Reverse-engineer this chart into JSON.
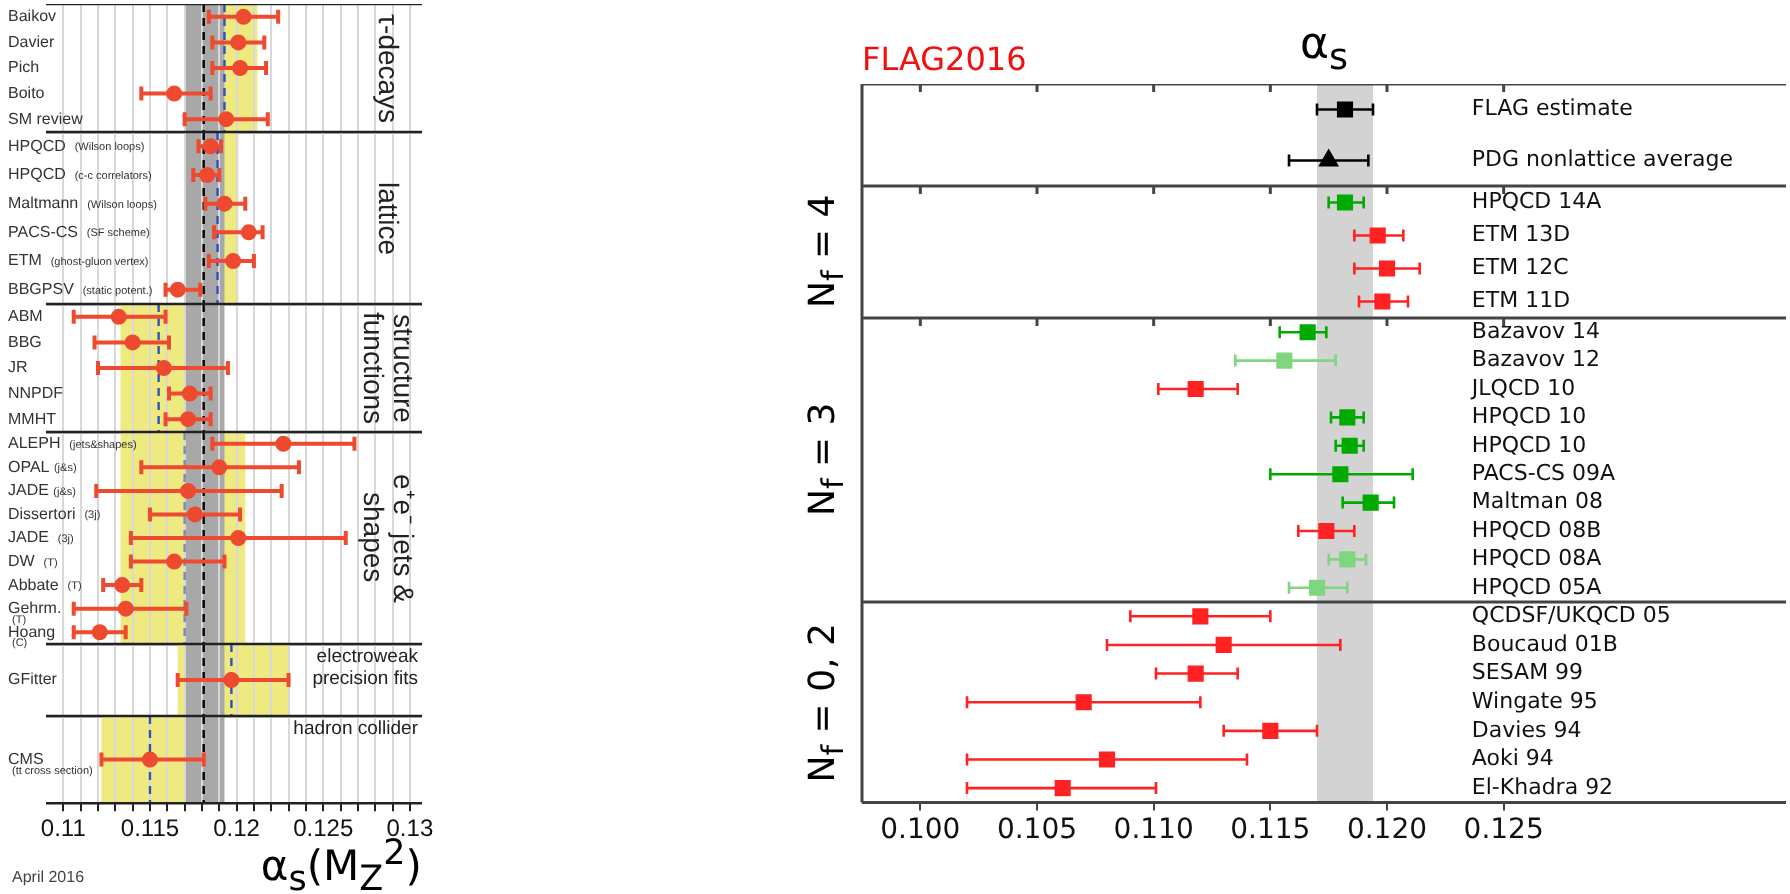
{
  "chart_data": [
    {
      "type": "scatter",
      "orientation": "horizontal",
      "y2label": "τ-decays",
      "categories": [
        "Baikov",
        "Davier",
        "Pich",
        "Boito",
        "SM review"
      ],
      "series": [
        {
          "color": "#ee4a30",
          "marker": "circle",
          "values": [
            0.1204,
            0.1201,
            0.1202,
            0.1164,
            0.1194
          ],
          "errors": [
            [
              0.1184,
              0.1224
            ],
            [
              0.1186,
              0.1216
            ],
            [
              0.1186,
              0.1217
            ],
            [
              0.1145,
              0.1185
            ],
            [
              0.117,
              0.1218
            ]
          ]
        }
      ],
      "xlim": [
        0.109,
        0.1307
      ],
      "xticks": [
        0.11,
        {
          "value": 0.111,
          "label": null
        },
        {
          "value": 0.112,
          "label": null
        },
        {
          "value": 0.113,
          "label": null
        },
        {
          "value": 0.114,
          "label": null
        },
        0.115,
        {
          "value": 0.116,
          "label": null
        },
        {
          "value": 0.117,
          "label": null
        },
        {
          "value": 0.118,
          "label": null
        },
        {
          "value": 0.119,
          "label": null
        },
        0.12,
        {
          "value": 0.121,
          "label": null
        },
        {
          "value": 0.122,
          "label": null
        },
        {
          "value": 0.123,
          "label": null
        },
        {
          "value": 0.124,
          "label": null
        },
        0.125,
        {
          "value": 0.126,
          "label": null
        },
        {
          "value": 0.127,
          "label": null
        },
        {
          "value": 0.128,
          "label": null
        },
        {
          "value": 0.129,
          "label": null
        },
        0.13
      ],
      "tick_labels": "y",
      "grid": "x",
      "bands": [
        {
          "axis": "x",
          "from": 0.1174,
          "to": 0.1212,
          "color": "#eeea80"
        },
        {
          "axis": "x",
          "from": 0.117,
          "to": 0.1193,
          "color": "#a8a8a8"
        }
      ],
      "ref_lines": [
        {
          "axis": "x",
          "value": 0.1181,
          "color": "#000000",
          "line_style": "dashed"
        },
        {
          "axis": "x",
          "value": 0.1193,
          "color": "#3050c0",
          "line_style": "dashed"
        }
      ]
    },
    {
      "type": "scatter",
      "orientation": "horizontal",
      "y2label": "lattice",
      "categories": [
        "HPQCD (Wilson loops)",
        "HPQCD (c-c correlators)",
        "Maltmann (Wilson loops)",
        "PACS-CS (SF scheme)",
        "ETM (ghost-gluon vertex)",
        "BBGPSV (static potent.)"
      ],
      "series": [
        {
          "color": "#ee4a30",
          "marker": "circle",
          "values": [
            0.1185,
            0.1183,
            0.1193,
            0.1207,
            0.1198,
            0.1166
          ],
          "errors": [
            [
              0.1178,
              0.1191
            ],
            [
              0.1175,
              0.119
            ],
            [
              0.1182,
              0.1205
            ],
            [
              0.1187,
              0.1215
            ],
            [
              0.1184,
              0.121
            ],
            [
              0.1159,
              0.1179
            ]
          ]
        }
      ],
      "xlim": [
        0.109,
        0.1307
      ],
      "xticks": [
        0.11,
        {
          "value": 0.111,
          "label": null
        },
        {
          "value": 0.112,
          "label": null
        },
        {
          "value": 0.113,
          "label": null
        },
        {
          "value": 0.114,
          "label": null
        },
        0.115,
        {
          "value": 0.116,
          "label": null
        },
        {
          "value": 0.117,
          "label": null
        },
        {
          "value": 0.118,
          "label": null
        },
        {
          "value": 0.119,
          "label": null
        },
        0.12,
        {
          "value": 0.121,
          "label": null
        },
        {
          "value": 0.122,
          "label": null
        },
        {
          "value": 0.123,
          "label": null
        },
        {
          "value": 0.124,
          "label": null
        },
        0.125,
        {
          "value": 0.126,
          "label": null
        },
        {
          "value": 0.127,
          "label": null
        },
        {
          "value": 0.128,
          "label": null
        },
        {
          "value": 0.129,
          "label": null
        },
        0.13
      ],
      "tick_labels": "y",
      "grid": "x",
      "bands": [
        {
          "axis": "x",
          "from": 0.1177,
          "to": 0.1201,
          "color": "#eeea80"
        },
        {
          "axis": "x",
          "from": 0.117,
          "to": 0.1193,
          "color": "#a8a8a8"
        }
      ],
      "ref_lines": [
        {
          "axis": "x",
          "value": 0.1181,
          "color": "#000000",
          "line_style": "dashed"
        },
        {
          "axis": "x",
          "value": 0.1189,
          "color": "#3050c0",
          "line_style": "dashed"
        }
      ]
    },
    {
      "type": "scatter",
      "orientation": "horizontal",
      "y2label": "structure functions",
      "categories": [
        "ABM",
        "BBG",
        "JR",
        "NNPDF",
        "MMHT"
      ],
      "series": [
        {
          "color": "#ee4a30",
          "marker": "circle",
          "values": [
            0.1132,
            0.114,
            0.1158,
            0.1173,
            0.1172
          ],
          "errors": [
            [
              0.1106,
              0.1159
            ],
            [
              0.1118,
              0.1161
            ],
            [
              0.112,
              0.1195
            ],
            [
              0.1161,
              0.1185
            ],
            [
              0.1159,
              0.1185
            ]
          ]
        }
      ],
      "xlim": [
        0.109,
        0.1307
      ],
      "xticks": [
        0.11,
        {
          "value": 0.111,
          "label": null
        },
        {
          "value": 0.112,
          "label": null
        },
        {
          "value": 0.113,
          "label": null
        },
        {
          "value": 0.114,
          "label": null
        },
        0.115,
        {
          "value": 0.116,
          "label": null
        },
        {
          "value": 0.117,
          "label": null
        },
        {
          "value": 0.118,
          "label": null
        },
        {
          "value": 0.119,
          "label": null
        },
        0.12,
        {
          "value": 0.121,
          "label": null
        },
        {
          "value": 0.122,
          "label": null
        },
        {
          "value": 0.123,
          "label": null
        },
        {
          "value": 0.124,
          "label": null
        },
        0.125,
        {
          "value": 0.126,
          "label": null
        },
        {
          "value": 0.127,
          "label": null
        },
        {
          "value": 0.128,
          "label": null
        },
        {
          "value": 0.129,
          "label": null
        },
        0.13
      ],
      "tick_labels": "y",
      "grid": "x",
      "bands": [
        {
          "axis": "x",
          "from": 0.1133,
          "to": 0.1177,
          "color": "#eeea80"
        },
        {
          "axis": "x",
          "from": 0.117,
          "to": 0.1193,
          "color": "#a8a8a8"
        }
      ],
      "ref_lines": [
        {
          "axis": "x",
          "value": 0.1181,
          "color": "#000000",
          "line_style": "dashed"
        },
        {
          "axis": "x",
          "value": 0.1155,
          "color": "#3050c0",
          "line_style": "dashed"
        }
      ]
    },
    {
      "type": "scatter",
      "orientation": "horizontal",
      "y2label": "e⁺e⁻ jets & shapes",
      "categories": [
        "ALEPH (jets&shapes)",
        "OPAL(j&s)",
        "JADE(j&s)",
        "Dissertori (3j)",
        "JADE (3j)",
        "DW (T)",
        "Abbate (T)",
        "Gehrm. (T)",
        "Hoang (C)"
      ],
      "series": [
        {
          "color": "#ee4a30",
          "marker": "circle",
          "values": [
            0.1227,
            0.119,
            0.1172,
            0.1176,
            0.1201,
            0.1164,
            0.1134,
            0.1136,
            0.1121
          ],
          "errors": [
            [
              0.1186,
              0.1268
            ],
            [
              0.1145,
              0.1236
            ],
            [
              0.1119,
              0.1226
            ],
            [
              0.115,
              0.1202
            ],
            [
              0.1139,
              0.1263
            ],
            [
              0.1139,
              0.1193
            ],
            [
              0.1123,
              0.1145
            ],
            [
              0.1106,
              0.1171
            ],
            [
              0.1106,
              0.1136
            ]
          ]
        }
      ],
      "xlim": [
        0.109,
        0.1307
      ],
      "xticks": [
        0.11,
        {
          "value": 0.111,
          "label": null
        },
        {
          "value": 0.112,
          "label": null
        },
        {
          "value": 0.113,
          "label": null
        },
        {
          "value": 0.114,
          "label": null
        },
        0.115,
        {
          "value": 0.116,
          "label": null
        },
        {
          "value": 0.117,
          "label": null
        },
        {
          "value": 0.118,
          "label": null
        },
        {
          "value": 0.119,
          "label": null
        },
        0.12,
        {
          "value": 0.121,
          "label": null
        },
        {
          "value": 0.122,
          "label": null
        },
        {
          "value": 0.123,
          "label": null
        },
        {
          "value": 0.124,
          "label": null
        },
        0.125,
        {
          "value": 0.126,
          "label": null
        },
        {
          "value": 0.127,
          "label": null
        },
        {
          "value": 0.128,
          "label": null
        },
        {
          "value": 0.129,
          "label": null
        },
        0.13
      ],
      "tick_labels": "y",
      "grid": "x",
      "bands": [
        {
          "axis": "x",
          "from": 0.1133,
          "to": 0.1205,
          "color": "#eeea80"
        },
        {
          "axis": "x",
          "from": 0.117,
          "to": 0.1193,
          "color": "#a8a8a8"
        }
      ],
      "ref_lines": [
        {
          "axis": "x",
          "value": 0.1181,
          "color": "#000000",
          "line_style": "dashed"
        },
        {
          "axis": "x",
          "value": 0.117,
          "color": "#7a8ab0",
          "line_style": "dashed"
        }
      ]
    },
    {
      "type": "scatter",
      "orientation": "horizontal",
      "y2label": "electroweak precision fits",
      "categories": [
        "GFitter"
      ],
      "series": [
        {
          "color": "#ee4a30",
          "marker": "circle",
          "values": [
            0.1197
          ],
          "errors": [
            [
              0.1166,
              0.123
            ]
          ]
        }
      ],
      "xlim": [
        0.109,
        0.1307
      ],
      "xticks": [
        0.11,
        {
          "value": 0.111,
          "label": null
        },
        {
          "value": 0.112,
          "label": null
        },
        {
          "value": 0.113,
          "label": null
        },
        {
          "value": 0.114,
          "label": null
        },
        0.115,
        {
          "value": 0.116,
          "label": null
        },
        {
          "value": 0.117,
          "label": null
        },
        {
          "value": 0.118,
          "label": null
        },
        {
          "value": 0.119,
          "label": null
        },
        0.12,
        {
          "value": 0.121,
          "label": null
        },
        {
          "value": 0.122,
          "label": null
        },
        {
          "value": 0.123,
          "label": null
        },
        {
          "value": 0.124,
          "label": null
        },
        0.125,
        {
          "value": 0.126,
          "label": null
        },
        {
          "value": 0.127,
          "label": null
        },
        {
          "value": 0.128,
          "label": null
        },
        {
          "value": 0.129,
          "label": null
        },
        0.13
      ],
      "tick_labels": "y",
      "grid": "x",
      "bands": [
        {
          "axis": "x",
          "from": 0.1166,
          "to": 0.123,
          "color": "#eeea80"
        },
        {
          "axis": "x",
          "from": 0.117,
          "to": 0.1193,
          "color": "#a8a8a8"
        }
      ],
      "ref_lines": [
        {
          "axis": "x",
          "value": 0.1181,
          "color": "#000000",
          "line_style": "dashed"
        },
        {
          "axis": "x",
          "value": 0.1197,
          "color": "#3050c0",
          "line_style": "dashed"
        }
      ]
    },
    {
      "type": "scatter",
      "orientation": "horizontal",
      "y2label": "hadron collider",
      "xlabel": "α$_{s}$(M$_{Z}$$^{2}$)",
      "annotations": [
        "April 2016"
      ],
      "categories": [
        "CMS (tt cross section)"
      ],
      "series": [
        {
          "color": "#ee4a30",
          "marker": "circle",
          "values": [
            0.115
          ],
          "errors": [
            [
              0.1122,
              0.1181
            ]
          ]
        }
      ],
      "xlim": [
        0.109,
        0.1307
      ],
      "xticks": [
        0.11,
        {
          "value": 0.111,
          "label": null
        },
        {
          "value": 0.112,
          "label": null
        },
        {
          "value": 0.113,
          "label": null
        },
        {
          "value": 0.114,
          "label": null
        },
        0.115,
        {
          "value": 0.116,
          "label": null
        },
        {
          "value": 0.117,
          "label": null
        },
        {
          "value": 0.118,
          "label": null
        },
        {
          "value": 0.119,
          "label": null
        },
        0.12,
        {
          "value": 0.121,
          "label": null
        },
        {
          "value": 0.122,
          "label": null
        },
        {
          "value": 0.123,
          "label": null
        },
        {
          "value": 0.124,
          "label": null
        },
        0.125,
        {
          "value": 0.126,
          "label": null
        },
        {
          "value": 0.127,
          "label": null
        },
        {
          "value": 0.128,
          "label": null
        },
        {
          "value": 0.129,
          "label": null
        },
        0.13
      ],
      "grid": "x",
      "bands": [
        {
          "axis": "x",
          "from": 0.1122,
          "to": 0.1181,
          "color": "#eeea80"
        },
        {
          "axis": "x",
          "from": 0.117,
          "to": 0.1193,
          "color": "#a8a8a8"
        }
      ],
      "ref_lines": [
        {
          "axis": "x",
          "value": 0.1181,
          "color": "#000000",
          "line_style": "dashed"
        },
        {
          "axis": "x",
          "value": 0.115,
          "color": "#3050c0",
          "line_style": "dashed"
        }
      ]
    },
    {
      "type": "scatter",
      "orientation": "horizontal",
      "title": "α$_{s}$",
      "annotations": [
        "FLAG2016"
      ],
      "categories": [
        "FLAG estimate",
        "PDG nonlattice average"
      ],
      "series": [
        {
          "color": "#000000",
          "marker": "square",
          "values": [
            0.1182,
            null
          ],
          "errors": [
            [
              0.117,
              0.1194
            ],
            null
          ]
        },
        {
          "color": "#000000",
          "marker": "triangle",
          "values": [
            null,
            0.1175
          ],
          "errors": [
            null,
            [
              0.1158,
              0.1192
            ]
          ]
        }
      ],
      "xlim": [
        0.0975,
        0.1371
      ],
      "xticks": [
        {
          "value": 0.1,
          "label": null
        },
        {
          "value": 0.105,
          "label": null
        },
        {
          "value": 0.11,
          "label": null
        },
        {
          "value": 0.115,
          "label": null
        },
        {
          "value": 0.12,
          "label": null
        },
        {
          "value": 0.125,
          "label": null
        }
      ],
      "tick_labels": "y",
      "bands": [
        {
          "axis": "x",
          "from": 0.117,
          "to": 0.1194,
          "color": "#d3d3d3"
        }
      ]
    },
    {
      "type": "scatter",
      "orientation": "horizontal",
      "ylabel": "N$_{f}$ = 4",
      "categories": [
        "HPQCD 14A",
        "ETM 13D",
        "ETM 12C",
        "ETM 11D"
      ],
      "series": [
        {
          "color": "#00aa00",
          "marker": "square",
          "values": [
            0.1182,
            null,
            null,
            null
          ],
          "errors": [
            [
              0.1175,
              0.119
            ],
            null,
            null,
            null
          ]
        },
        {
          "color": "#ff2222",
          "marker": "square",
          "values": [
            null,
            0.1196,
            0.12,
            0.1198
          ],
          "errors": [
            null,
            [
              0.1186,
              0.1207
            ],
            [
              0.1186,
              0.1214
            ],
            [
              0.1188,
              0.1209
            ]
          ]
        }
      ],
      "xlim": [
        0.0975,
        0.1371
      ],
      "xticks": [
        {
          "value": 0.1,
          "label": null
        },
        {
          "value": 0.105,
          "label": null
        },
        {
          "value": 0.11,
          "label": null
        },
        {
          "value": 0.115,
          "label": null
        },
        {
          "value": 0.12,
          "label": null
        },
        {
          "value": 0.125,
          "label": null
        }
      ],
      "tick_labels": "y",
      "bands": [
        {
          "axis": "x",
          "from": 0.117,
          "to": 0.1194,
          "color": "#d3d3d3"
        }
      ]
    },
    {
      "type": "scatter",
      "orientation": "horizontal",
      "ylabel": "N$_{f}$ = 3",
      "categories": [
        "Bazavov 14",
        "Bazavov 12",
        "JLQCD 10",
        "HPQCD 10",
        "HPQCD 10",
        "PACS-CS 09A",
        "Maltman 08",
        "HPQCD 08B",
        "HPQCD 08A",
        "HPQCD 05A"
      ],
      "series": [
        {
          "color": "#00aa00",
          "marker": "square",
          "values": [
            0.1166,
            null,
            null,
            0.1183,
            0.1184,
            0.118,
            0.1193,
            null,
            null,
            null
          ],
          "errors": [
            [
              0.1154,
              0.1174
            ],
            null,
            null,
            [
              0.1176,
              0.119
            ],
            [
              0.1178,
              0.119
            ],
            [
              0.115,
              0.1211
            ],
            [
              0.1181,
              0.1203
            ],
            null,
            null,
            null
          ]
        },
        {
          "color": "#7fd67f",
          "marker": "square",
          "values": [
            null,
            0.1156,
            null,
            null,
            null,
            null,
            null,
            null,
            0.1183,
            0.117
          ],
          "errors": [
            null,
            [
              0.1135,
              0.1178
            ],
            null,
            null,
            null,
            null,
            null,
            null,
            [
              0.1175,
              0.1191
            ],
            [
              0.1158,
              0.1183
            ]
          ]
        },
        {
          "color": "#ff2222",
          "marker": "square",
          "values": [
            null,
            null,
            0.1118,
            null,
            null,
            null,
            null,
            0.1174,
            null,
            null
          ],
          "errors": [
            null,
            null,
            [
              0.1102,
              0.1136
            ],
            null,
            null,
            null,
            null,
            [
              0.1162,
              0.1186
            ],
            null,
            null
          ]
        }
      ],
      "xlim": [
        0.0975,
        0.1371
      ],
      "xticks": [
        {
          "value": 0.1,
          "label": null
        },
        {
          "value": 0.105,
          "label": null
        },
        {
          "value": 0.11,
          "label": null
        },
        {
          "value": 0.115,
          "label": null
        },
        {
          "value": 0.12,
          "label": null
        },
        {
          "value": 0.125,
          "label": null
        }
      ],
      "tick_labels": "y",
      "bands": [
        {
          "axis": "x",
          "from": 0.117,
          "to": 0.1194,
          "color": "#d3d3d3"
        }
      ]
    },
    {
      "type": "scatter",
      "orientation": "horizontal",
      "ylabel": "N$_{f}$ = 0, 2",
      "categories": [
        "QCDSF/UKQCD 05",
        "Boucaud 01B",
        "SESAM 99",
        "Wingate 95",
        "Davies 94",
        "Aoki 94",
        "El-Khadra 92"
      ],
      "series": [
        {
          "color": "#ff2222",
          "marker": "square",
          "values": [
            0.112,
            0.113,
            0.1118,
            0.107,
            0.115,
            0.108,
            0.1061
          ],
          "errors": [
            [
              0.109,
              0.115
            ],
            [
              0.108,
              0.118
            ],
            [
              0.1101,
              0.1136
            ],
            [
              0.102,
              0.112
            ],
            [
              0.113,
              0.117
            ],
            [
              0.102,
              0.114
            ],
            [
              0.102,
              0.1101
            ]
          ]
        }
      ],
      "xlim": [
        0.0975,
        0.1371
      ],
      "xticks": [
        {
          "value": 0.1,
          "label": "0.100"
        },
        {
          "value": 0.105,
          "label": "0.105"
        },
        {
          "value": 0.11,
          "label": "0.110"
        },
        {
          "value": 0.115,
          "label": "0.115"
        },
        {
          "value": 0.12,
          "label": "0.120"
        },
        {
          "value": 0.125,
          "label": "0.125"
        }
      ],
      "bands": [
        {
          "axis": "x",
          "from": 0.117,
          "to": 0.1194,
          "color": "#d3d3d3"
        }
      ]
    }
  ]
}
